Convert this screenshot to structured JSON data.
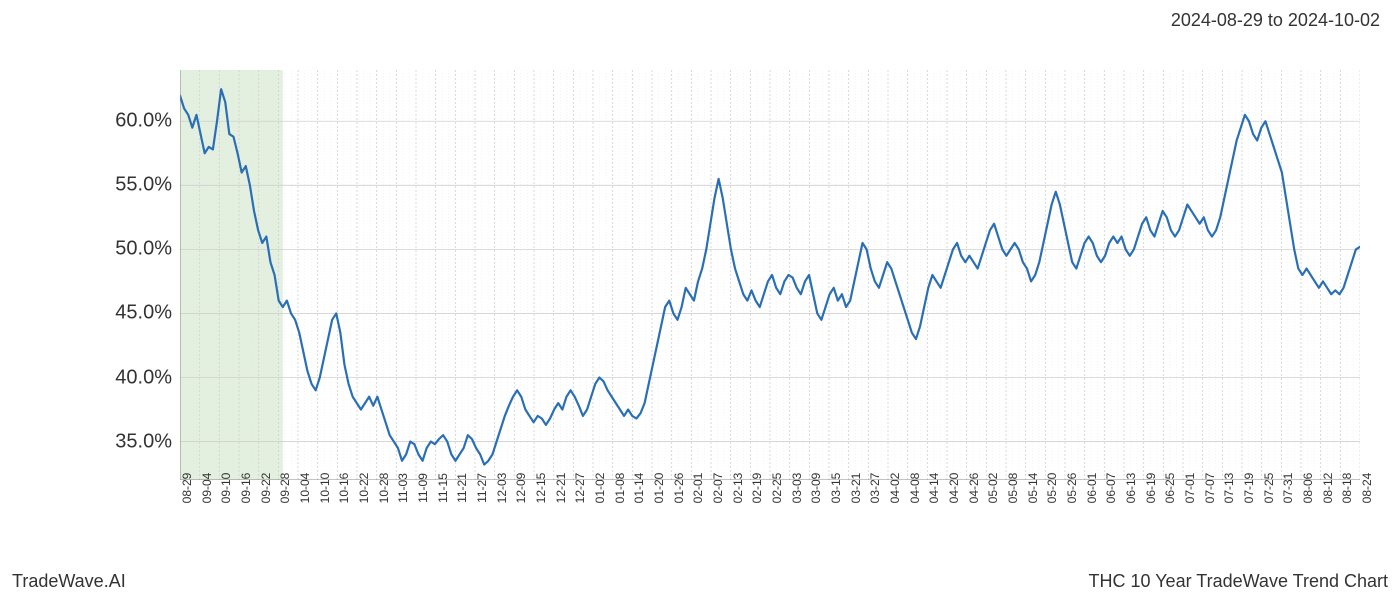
{
  "header": {
    "date_range": "2024-08-29 to 2024-10-02"
  },
  "footer": {
    "brand": "TradeWave.AI",
    "title": "THC 10 Year TradeWave Trend Chart"
  },
  "chart": {
    "type": "line",
    "background_color": "#ffffff",
    "grid_color": "#d0d0d0",
    "minor_grid_color": "#e8e8e8",
    "line_color": "#2a6fb5",
    "line_width": 2.2,
    "highlight_band": {
      "start_index": 0,
      "end_index": 25,
      "fill_color": "#c8e0c0",
      "fill_opacity": 0.5
    },
    "y_axis": {
      "min": 32,
      "max": 64,
      "ticks": [
        35.0,
        40.0,
        45.0,
        50.0,
        55.0,
        60.0
      ],
      "tick_labels": [
        "35.0%",
        "40.0%",
        "45.0%",
        "50.0%",
        "55.0%",
        "60.0%"
      ],
      "label_fontsize": 20,
      "label_color": "#333333"
    },
    "x_axis": {
      "tick_labels": [
        "08-29",
        "09-04",
        "09-10",
        "09-16",
        "09-22",
        "09-28",
        "10-04",
        "10-10",
        "10-16",
        "10-22",
        "10-28",
        "11-03",
        "11-09",
        "11-15",
        "11-21",
        "11-27",
        "12-03",
        "12-09",
        "12-15",
        "12-21",
        "12-27",
        "01-02",
        "01-08",
        "01-14",
        "01-20",
        "01-26",
        "02-01",
        "02-07",
        "02-13",
        "02-19",
        "02-25",
        "03-03",
        "03-09",
        "03-15",
        "03-21",
        "03-27",
        "04-02",
        "04-08",
        "04-14",
        "04-20",
        "04-26",
        "05-02",
        "05-08",
        "05-14",
        "05-20",
        "05-26",
        "06-01",
        "06-07",
        "06-13",
        "06-19",
        "06-25",
        "07-01",
        "07-07",
        "07-13",
        "07-19",
        "07-25",
        "07-31",
        "08-06",
        "08-12",
        "08-18",
        "08-24"
      ],
      "label_fontsize": 12,
      "label_color": "#333333"
    },
    "series": [
      62.0,
      61.0,
      60.5,
      59.5,
      60.5,
      59.0,
      57.5,
      58.0,
      57.8,
      60.0,
      62.5,
      61.5,
      59.0,
      58.8,
      57.5,
      56.0,
      56.5,
      55.0,
      53.0,
      51.5,
      50.5,
      51.0,
      49.0,
      48.0,
      46.0,
      45.5,
      46.0,
      45.0,
      44.5,
      43.5,
      42.0,
      40.5,
      39.5,
      39.0,
      40.0,
      41.5,
      43.0,
      44.5,
      45.0,
      43.5,
      41.0,
      39.5,
      38.5,
      38.0,
      37.5,
      38.0,
      38.5,
      37.8,
      38.5,
      37.5,
      36.5,
      35.5,
      35.0,
      34.5,
      33.5,
      34.0,
      35.0,
      34.8,
      34.0,
      33.5,
      34.5,
      35.0,
      34.8,
      35.2,
      35.5,
      35.0,
      34.0,
      33.5,
      34.0,
      34.5,
      35.5,
      35.2,
      34.5,
      34.0,
      33.2,
      33.5,
      34.0,
      35.0,
      36.0,
      37.0,
      37.8,
      38.5,
      39.0,
      38.5,
      37.5,
      37.0,
      36.5,
      37.0,
      36.8,
      36.3,
      36.8,
      37.5,
      38.0,
      37.5,
      38.5,
      39.0,
      38.5,
      37.8,
      37.0,
      37.5,
      38.5,
      39.5,
      40.0,
      39.7,
      39.0,
      38.5,
      38.0,
      37.5,
      37.0,
      37.5,
      37.0,
      36.8,
      37.2,
      38.0,
      39.5,
      41.0,
      42.5,
      44.0,
      45.5,
      46.0,
      45.0,
      44.5,
      45.5,
      47.0,
      46.5,
      46.0,
      47.5,
      48.5,
      50.0,
      52.0,
      54.0,
      55.5,
      54.0,
      52.0,
      50.0,
      48.5,
      47.5,
      46.5,
      46.0,
      46.8,
      46.0,
      45.5,
      46.5,
      47.5,
      48.0,
      47.0,
      46.5,
      47.5,
      48.0,
      47.8,
      47.0,
      46.5,
      47.5,
      48.0,
      46.5,
      45.0,
      44.5,
      45.5,
      46.5,
      47.0,
      46.0,
      46.5,
      45.5,
      46.0,
      47.5,
      49.0,
      50.5,
      50.0,
      48.5,
      47.5,
      47.0,
      48.0,
      49.0,
      48.5,
      47.5,
      46.5,
      45.5,
      44.5,
      43.5,
      43.0,
      44.0,
      45.5,
      47.0,
      48.0,
      47.5,
      47.0,
      48.0,
      49.0,
      50.0,
      50.5,
      49.5,
      49.0,
      49.5,
      49.0,
      48.5,
      49.5,
      50.5,
      51.5,
      52.0,
      51.0,
      50.0,
      49.5,
      50.0,
      50.5,
      50.0,
      49.0,
      48.5,
      47.5,
      48.0,
      49.0,
      50.5,
      52.0,
      53.5,
      54.5,
      53.5,
      52.0,
      50.5,
      49.0,
      48.5,
      49.5,
      50.5,
      51.0,
      50.5,
      49.5,
      49.0,
      49.5,
      50.5,
      51.0,
      50.5,
      51.0,
      50.0,
      49.5,
      50.0,
      51.0,
      52.0,
      52.5,
      51.5,
      51.0,
      52.0,
      53.0,
      52.5,
      51.5,
      51.0,
      51.5,
      52.5,
      53.5,
      53.0,
      52.5,
      52.0,
      52.5,
      51.5,
      51.0,
      51.5,
      52.5,
      54.0,
      55.5,
      57.0,
      58.5,
      59.5,
      60.5,
      60.0,
      59.0,
      58.5,
      59.5,
      60.0,
      59.0,
      58.0,
      57.0,
      56.0,
      54.0,
      52.0,
      50.0,
      48.5,
      48.0,
      48.5,
      48.0,
      47.5,
      47.0,
      47.5,
      47.0,
      46.5,
      46.8,
      46.5,
      47.0,
      48.0,
      49.0,
      50.0,
      50.2
    ]
  }
}
